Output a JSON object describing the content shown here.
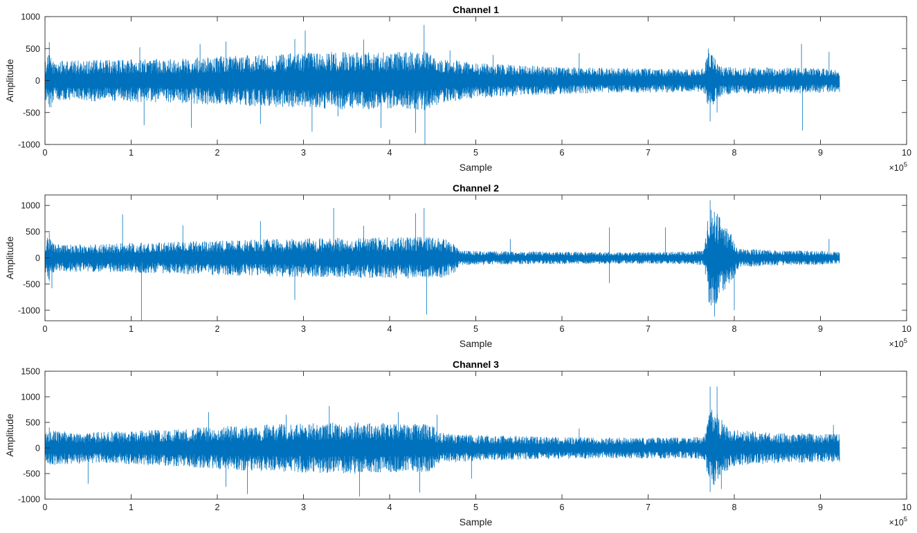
{
  "chart_data": [
    {
      "type": "line",
      "title": "Channel 1",
      "xlabel": "Sample",
      "ylabel": "Amplitude",
      "xlim": [
        0,
        10
      ],
      "ylim": [
        -1000,
        1000
      ],
      "x_ticks": [
        "0",
        "1",
        "2",
        "3",
        "4",
        "5",
        "6",
        "7",
        "8",
        "9",
        "10"
      ],
      "y_ticks": [
        "1000",
        "500",
        "0",
        "-500",
        "-1000"
      ],
      "x_exponent_base": "×10",
      "x_exponent_power": "5",
      "grid": false,
      "color": "#0072BD",
      "series": [
        {
          "x_end": 9.22,
          "envelope": [
            [
              0,
              300
            ],
            [
              0.05,
              420
            ],
            [
              0.1,
              300
            ],
            [
              0.5,
              320
            ],
            [
              1,
              330
            ],
            [
              1.5,
              350
            ],
            [
              2,
              380
            ],
            [
              2.5,
              400
            ],
            [
              3,
              430
            ],
            [
              3.5,
              450
            ],
            [
              4,
              440
            ],
            [
              4.4,
              460
            ],
            [
              4.6,
              350
            ],
            [
              5,
              270
            ],
            [
              5.5,
              240
            ],
            [
              6,
              210
            ],
            [
              6.5,
              200
            ],
            [
              7,
              190
            ],
            [
              7.5,
              175
            ],
            [
              7.65,
              190
            ],
            [
              7.7,
              460
            ],
            [
              7.75,
              380
            ],
            [
              7.85,
              230
            ],
            [
              8,
              200
            ],
            [
              8.5,
              210
            ],
            [
              9,
              190
            ],
            [
              9.22,
              180
            ]
          ],
          "spikes": [
            [
              0.05,
              600
            ],
            [
              0.07,
              -420
            ],
            [
              1.15,
              -700
            ],
            [
              1.1,
              520
            ],
            [
              1.7,
              -740
            ],
            [
              1.8,
              570
            ],
            [
              2.1,
              610
            ],
            [
              2.5,
              -680
            ],
            [
              2.9,
              650
            ],
            [
              3.02,
              780
            ],
            [
              3.1,
              -800
            ],
            [
              3.4,
              -560
            ],
            [
              3.7,
              640
            ],
            [
              3.9,
              -740
            ],
            [
              4.3,
              -820
            ],
            [
              4.4,
              870
            ],
            [
              4.41,
              -1000
            ],
            [
              4.7,
              470
            ],
            [
              5.2,
              400
            ],
            [
              6.2,
              430
            ],
            [
              7.7,
              500
            ],
            [
              7.72,
              -640
            ],
            [
              7.8,
              -500
            ],
            [
              8.78,
              570
            ],
            [
              8.79,
              -780
            ],
            [
              9.1,
              450
            ]
          ]
        }
      ]
    },
    {
      "type": "line",
      "title": "Channel 2",
      "xlabel": "Sample",
      "ylabel": "Amplitude",
      "xlim": [
        0,
        10
      ],
      "ylim": [
        -1200,
        1200
      ],
      "x_ticks": [
        "0",
        "1",
        "2",
        "3",
        "4",
        "5",
        "6",
        "7",
        "8",
        "9",
        "10"
      ],
      "y_ticks": [
        "1000",
        "500",
        "0",
        "-500",
        "-1000"
      ],
      "x_exponent_base": "×10",
      "x_exponent_power": "5",
      "grid": false,
      "color": "#0072BD",
      "series": [
        {
          "x_end": 9.22,
          "envelope": [
            [
              0,
              300
            ],
            [
              0.05,
              450
            ],
            [
              0.1,
              260
            ],
            [
              0.5,
              260
            ],
            [
              1,
              280
            ],
            [
              1.5,
              300
            ],
            [
              2,
              330
            ],
            [
              2.5,
              350
            ],
            [
              3,
              370
            ],
            [
              3.5,
              380
            ],
            [
              4,
              390
            ],
            [
              4.4,
              400
            ],
            [
              4.6,
              380
            ],
            [
              4.75,
              300
            ],
            [
              4.8,
              140
            ],
            [
              5,
              130
            ],
            [
              5.5,
              120
            ],
            [
              6,
              115
            ],
            [
              6.5,
              110
            ],
            [
              7,
              110
            ],
            [
              7.5,
              115
            ],
            [
              7.65,
              150
            ],
            [
              7.7,
              850
            ],
            [
              7.75,
              1000
            ],
            [
              7.85,
              700
            ],
            [
              7.95,
              500
            ],
            [
              8.05,
              180
            ],
            [
              8.5,
              140
            ],
            [
              9,
              130
            ],
            [
              9.22,
              110
            ]
          ],
          "spikes": [
            [
              0.05,
              480
            ],
            [
              0.08,
              -580
            ],
            [
              0.9,
              830
            ],
            [
              1.12,
              -1200
            ],
            [
              1.6,
              620
            ],
            [
              2.5,
              700
            ],
            [
              2.9,
              -800
            ],
            [
              3.35,
              950
            ],
            [
              3.7,
              610
            ],
            [
              4.3,
              850
            ],
            [
              4.4,
              950
            ],
            [
              4.43,
              -1080
            ],
            [
              5.4,
              360
            ],
            [
              6.55,
              580
            ],
            [
              6.55,
              -480
            ],
            [
              7.2,
              580
            ],
            [
              7.72,
              1100
            ],
            [
              7.77,
              -1120
            ],
            [
              8.0,
              -1000
            ],
            [
              9.1,
              360
            ]
          ]
        }
      ]
    },
    {
      "type": "line",
      "title": "Channel 3",
      "xlabel": "Sample",
      "ylabel": "Amplitude",
      "xlim": [
        0,
        10
      ],
      "ylim": [
        -1000,
        1500
      ],
      "x_ticks": [
        "0",
        "1",
        "2",
        "3",
        "4",
        "5",
        "6",
        "7",
        "8",
        "9",
        "10"
      ],
      "y_ticks": [
        "1500",
        "1000",
        "500",
        "0",
        "-500",
        "-1000"
      ],
      "x_exponent_base": "×10",
      "x_exponent_power": "5",
      "grid": false,
      "color": "#0072BD",
      "series": [
        {
          "x_end": 9.22,
          "envelope": [
            [
              0,
              300
            ],
            [
              0.1,
              330
            ],
            [
              0.5,
              300
            ],
            [
              1,
              330
            ],
            [
              1.5,
              360
            ],
            [
              2,
              420
            ],
            [
              2.5,
              450
            ],
            [
              3,
              480
            ],
            [
              3.5,
              500
            ],
            [
              4,
              480
            ],
            [
              4.5,
              460
            ],
            [
              4.55,
              300
            ],
            [
              5,
              250
            ],
            [
              5.5,
              230
            ],
            [
              6,
              210
            ],
            [
              6.5,
              200
            ],
            [
              7,
              200
            ],
            [
              7.5,
              210
            ],
            [
              7.65,
              220
            ],
            [
              7.7,
              700
            ],
            [
              7.75,
              800
            ],
            [
              7.85,
              550
            ],
            [
              8,
              350
            ],
            [
              8.5,
              290
            ],
            [
              9,
              280
            ],
            [
              9.22,
              270
            ]
          ],
          "spikes": [
            [
              0.05,
              400
            ],
            [
              0.5,
              -700
            ],
            [
              1.9,
              700
            ],
            [
              2.1,
              -760
            ],
            [
              2.35,
              -900
            ],
            [
              2.8,
              650
            ],
            [
              3.3,
              820
            ],
            [
              3.65,
              -950
            ],
            [
              4.1,
              700
            ],
            [
              4.35,
              -870
            ],
            [
              4.55,
              650
            ],
            [
              4.95,
              -600
            ],
            [
              6.2,
              380
            ],
            [
              7.72,
              1200
            ],
            [
              7.72,
              -860
            ],
            [
              7.8,
              1200
            ],
            [
              7.85,
              -800
            ],
            [
              9.15,
              450
            ]
          ]
        }
      ]
    }
  ]
}
